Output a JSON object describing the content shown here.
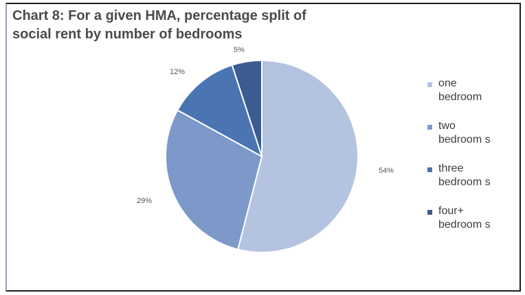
{
  "chart_data": {
    "type": "pie",
    "title_line1": "Chart 8: For a given HMA, percentage split of",
    "title_line2": "social rent by number of bedrooms",
    "slices": [
      {
        "name": "one bedroom",
        "value": 54,
        "label": "54%",
        "color": "#b4c3e0"
      },
      {
        "name": "two bedroom s",
        "value": 29,
        "label": "29%",
        "color": "#7d99ca"
      },
      {
        "name": "three bedroom s",
        "value": 12,
        "label": "12%",
        "color": "#4a74b2"
      },
      {
        "name": "four+ bedroom s",
        "value": 5,
        "label": "5%",
        "color": "#3b5b91"
      }
    ],
    "legend": [
      {
        "line1": "one",
        "line2": "bedroom",
        "color": "#b4c3e0"
      },
      {
        "line1": "two",
        "line2": "bedroom s",
        "color": "#7d99ca"
      },
      {
        "line1": "three",
        "line2": "bedroom s",
        "color": "#4a74b2"
      },
      {
        "line1": "four+",
        "line2": "bedroom s",
        "color": "#3b5b91"
      }
    ],
    "legend_position": "right"
  }
}
